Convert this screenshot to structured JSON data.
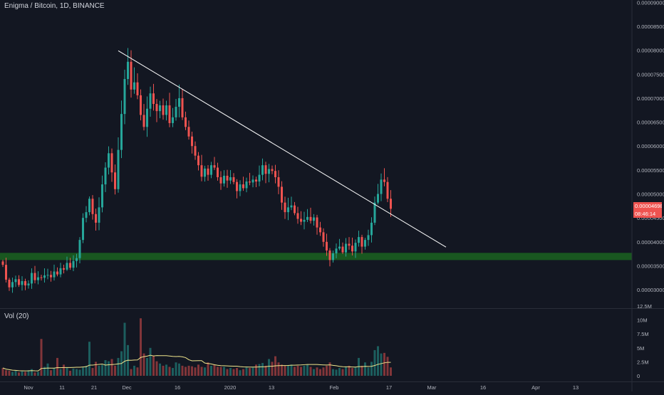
{
  "header": {
    "title": "Enigma / Bitcoin, 1D, BINANCE",
    "volume_label": "Vol (20)"
  },
  "price_tags": {
    "last_price": "0.00004698",
    "countdown": "08:46:14"
  },
  "colors": {
    "background": "#131722",
    "up": "#26a69a",
    "down": "#ef5350",
    "support_zone": "#1b5e20",
    "trendline": "#ffffff",
    "volume_ma": "#f0e68c"
  },
  "chart_data": {
    "type": "candlestick",
    "title": "Enigma / Bitcoin, 1D, BINANCE",
    "x_tick_labels": [
      "Nov",
      "11",
      "21",
      "Dec",
      "16",
      "2020",
      "13",
      "Feb",
      "17",
      "Mar",
      "16",
      "Apr",
      "13"
    ],
    "price_axis": {
      "ticks": [
        "0.00009000",
        "0.00008500",
        "0.00008000",
        "0.00007500",
        "0.00007000",
        "0.00006500",
        "0.00006000",
        "0.00005500",
        "0.00005000",
        "0.00004500",
        "0.00004000",
        "0.00003500",
        "0.00003000"
      ],
      "range": [
        2.63e-05,
        9.05e-05
      ]
    },
    "volume_axis": {
      "ticks": [
        "12.5M",
        "10M",
        "7.5M",
        "5M",
        "2.5M",
        "0"
      ],
      "range": [
        0,
        12500000
      ]
    },
    "support_zone": {
      "low": 3.62e-05,
      "high": 3.77e-05
    },
    "trendline": {
      "from": {
        "bar": 0,
        "price": 7.99e-05
      },
      "to": {
        "bar": 0,
        "price": 3.89e-05
      }
    },
    "closes": [
      3.52e-05,
      3.21e-05,
      3.05e-05,
      3.16e-05,
      3.22e-05,
      3.1e-05,
      3.18e-05,
      3.09e-05,
      3.13e-05,
      3.35e-05,
      3.2e-05,
      3.26e-05,
      3.25e-05,
      3.3e-05,
      3.31e-05,
      3.26e-05,
      3.38e-05,
      3.32e-05,
      3.45e-05,
      3.42e-05,
      3.56e-05,
      3.46e-05,
      3.6e-05,
      3.66e-05,
      4.04e-05,
      4.5e-05,
      4.62e-05,
      4.9e-05,
      4.58e-05,
      4.4e-05,
      4.72e-05,
      5.2e-05,
      5.55e-05,
      5.85e-05,
      5.45e-05,
      5.1e-05,
      5.92e-05,
      6.67e-05,
      7.4e-05,
      7.76e-05,
      7.18e-05,
      7.33e-05,
      7.06e-05,
      6.65e-05,
      6.4e-05,
      6.78e-05,
      7.1e-05,
      6.88e-05,
      6.73e-05,
      6.85e-05,
      6.65e-05,
      6.85e-05,
      6.48e-05,
      6.6e-05,
      6.82e-05,
      7e-05,
      6.6e-05,
      6.4e-05,
      6.2e-05,
      6e-05,
      5.8e-05,
      5.6e-05,
      5.36e-05,
      5.53e-05,
      5.4e-05,
      5.6e-05,
      5.55e-05,
      5.35e-05,
      5.22e-05,
      5.38e-05,
      5.28e-05,
      5.35e-05,
      5.25e-05,
      5.06e-05,
      5.2e-05,
      5.12e-05,
      5.26e-05,
      5.24e-05,
      5.3e-05,
      5.26e-05,
      5.4e-05,
      5.6e-05,
      5.42e-05,
      5.52e-05,
      5.48e-05,
      5.35e-05,
      5.15e-05,
      4.82e-05,
      4.62e-05,
      4.72e-05,
      4.76e-05,
      4.6e-05,
      4.48e-05,
      4.42e-05,
      4.46e-05,
      4.52e-05,
      4.44e-05,
      4.51e-05,
      4.3e-05,
      4.2e-05,
      4e-05,
      3.82e-05,
      3.62e-05,
      3.76e-05,
      3.86e-05,
      3.9e-05,
      3.78e-05,
      3.96e-05,
      3.92e-05,
      3.8e-05,
      3.98e-05,
      4.1e-05,
      3.9e-05,
      4.04e-05,
      4.14e-05,
      4.4e-05,
      4.82e-05,
      5e-05,
      5.3e-05,
      5.25e-05,
      4.9e-05,
      4.69e-05
    ],
    "volumes": [
      1.4,
      1.0,
      0.9,
      0.7,
      0.9,
      0.6,
      0.8,
      0.7,
      1.0,
      1.2,
      0.6,
      0.7,
      6.6,
      1.6,
      2.2,
      1.0,
      1.4,
      3.2,
      1.2,
      2.0,
      1.4,
      0.9,
      1.3,
      1.2,
      1.1,
      1.5,
      1.8,
      6.1,
      1.4,
      2.5,
      1.8,
      2.0,
      2.8,
      2.6,
      3.0,
      1.8,
      3.2,
      4.4,
      9.5,
      5.5,
      1.2,
      1.8,
      1.5,
      10.3,
      4.0,
      3.2,
      5.0,
      3.6,
      2.6,
      2.2,
      1.8,
      2.0,
      1.6,
      1.4,
      2.4,
      2.2,
      1.8,
      1.6,
      1.8,
      1.7,
      1.5,
      2.0,
      1.6,
      1.5,
      2.4,
      1.8,
      2.0,
      1.6,
      1.6,
      1.6,
      1.2,
      1.4,
      1.2,
      1.4,
      1.0,
      1.2,
      1.5,
      1.4,
      1.5,
      2.0,
      2.1,
      2.3,
      1.8,
      3.0,
      2.5,
      3.5,
      2.4,
      2.0,
      1.8,
      1.9,
      2.0,
      1.6,
      1.8,
      1.6,
      1.8,
      2.0,
      1.6,
      1.2,
      1.5,
      1.2,
      1.5,
      1.8,
      2.4,
      1.2,
      1.1,
      1.4,
      1.2,
      1.6,
      1.8,
      1.4,
      1.6,
      3.2,
      1.8,
      2.4,
      1.5,
      2.5,
      4.6,
      5.3,
      4.0,
      4.1,
      3.4,
      1.5
    ]
  }
}
